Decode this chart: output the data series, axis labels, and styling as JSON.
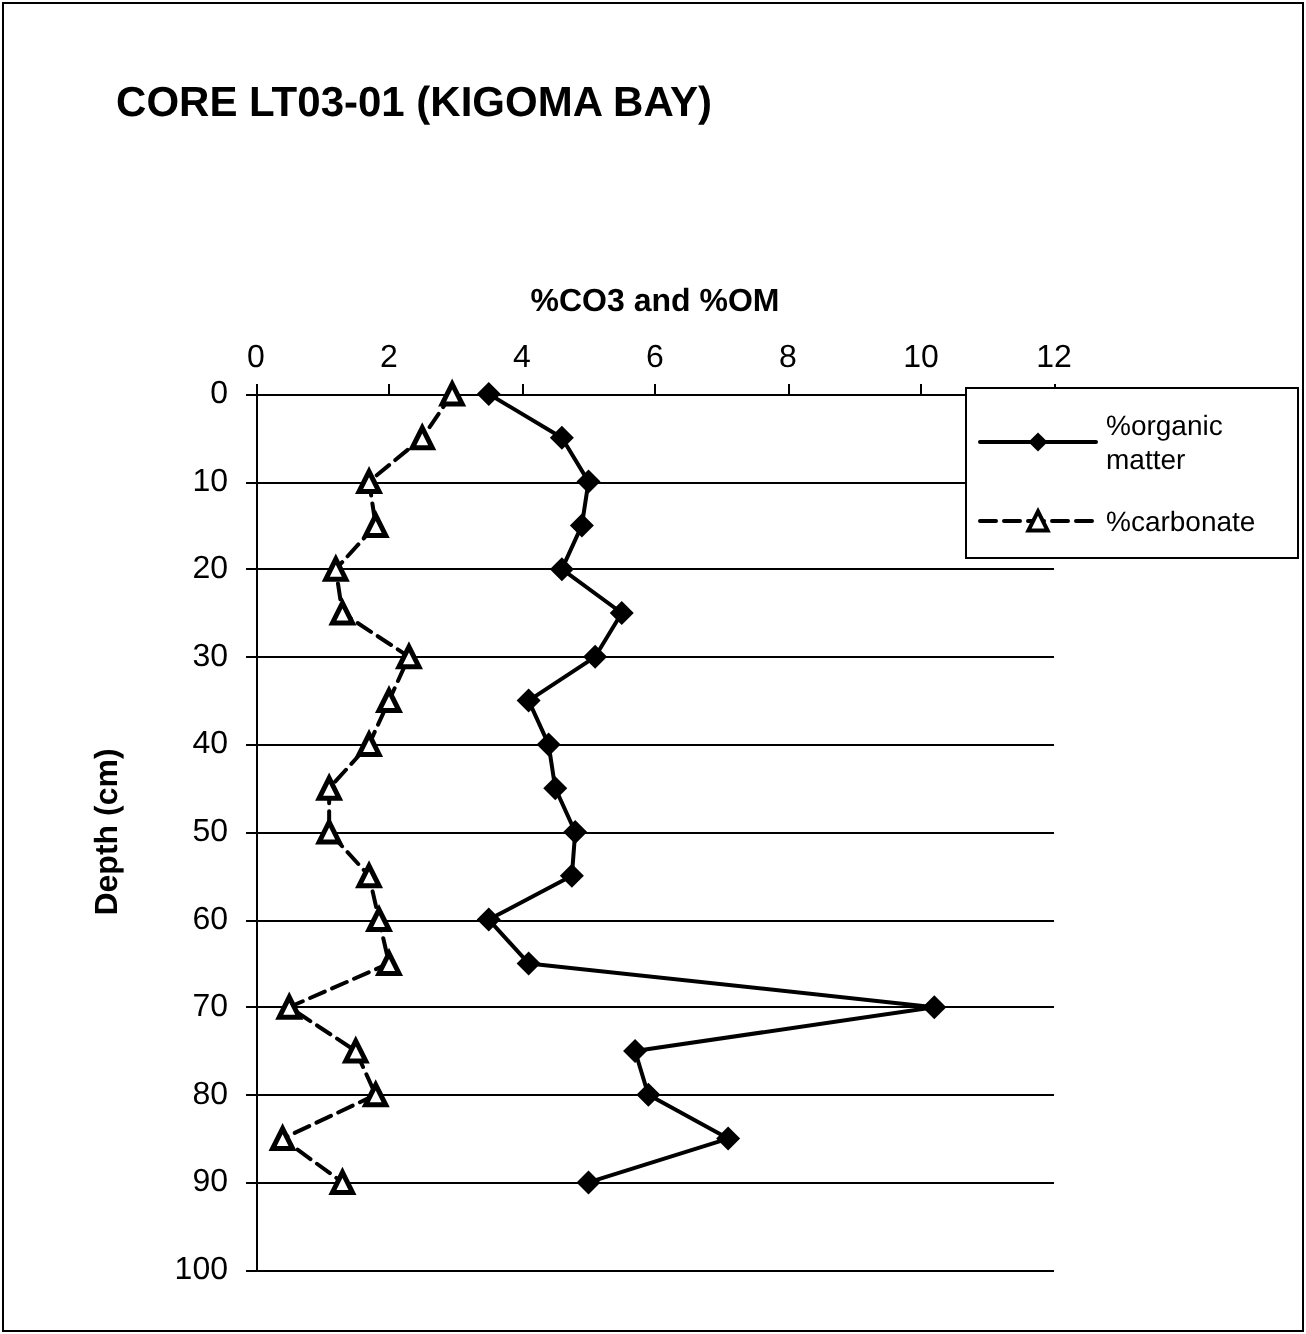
{
  "chart_data": {
    "type": "line",
    "title": "CORE LT03-01 (KIGOMA BAY)",
    "xlabel": "%CO3 and %OM",
    "ylabel": "Depth (cm)",
    "series": [
      {
        "name": "%organic matter",
        "color": "#000000",
        "marker": "diamond",
        "line_style": "solid",
        "x": [
          3.5,
          4.6,
          5.0,
          4.9,
          4.6,
          5.5,
          5.1,
          4.1,
          4.4,
          4.5,
          4.8,
          4.75,
          3.5,
          4.1,
          10.2,
          5.7,
          5.9,
          7.1,
          5.0
        ],
        "values": [
          0,
          5,
          10,
          15,
          20,
          25,
          30,
          35,
          40,
          45,
          50,
          55,
          60,
          65,
          70,
          75,
          80,
          85,
          90
        ]
      },
      {
        "name": "%carbonate",
        "color": "#000000",
        "marker": "triangle",
        "line_style": "dashed",
        "x": [
          2.95,
          2.5,
          1.7,
          1.8,
          1.2,
          1.3,
          2.3,
          2.0,
          1.7,
          1.1,
          1.1,
          1.7,
          1.85,
          2.0,
          0.5,
          1.5,
          1.8,
          0.4,
          1.3
        ],
        "values": [
          0,
          5,
          10,
          15,
          20,
          25,
          30,
          35,
          40,
          45,
          50,
          55,
          60,
          65,
          70,
          75,
          80,
          85,
          90
        ]
      }
    ],
    "xlim": [
      0,
      12
    ],
    "xticks": [
      0,
      2,
      4,
      6,
      8,
      10,
      12
    ],
    "ylim": [
      100,
      0
    ],
    "yticks": [
      0,
      10,
      20,
      30,
      40,
      50,
      60,
      70,
      80,
      90,
      100
    ],
    "grid": "y",
    "legend": "top right"
  }
}
